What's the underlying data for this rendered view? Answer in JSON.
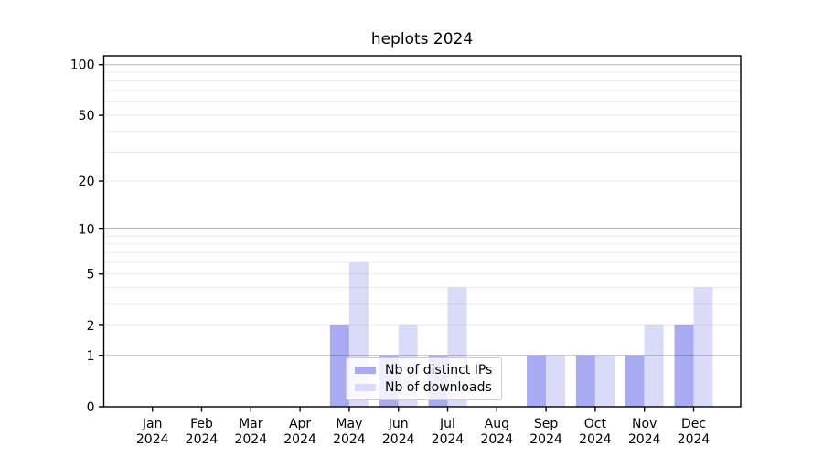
{
  "chart_data": {
    "type": "bar",
    "title": "heplots 2024",
    "categories": [
      "Jan",
      "Feb",
      "Mar",
      "Apr",
      "May",
      "Jun",
      "Jul",
      "Aug",
      "Sep",
      "Oct",
      "Nov",
      "Dec"
    ],
    "year_label": "2024",
    "series": [
      {
        "name": "Nb of distinct IPs",
        "color": "#a8abf2",
        "values": [
          0,
          0,
          0,
          0,
          2,
          1,
          1,
          0,
          1,
          1,
          1,
          2
        ]
      },
      {
        "name": "Nb of downloads",
        "color": "#d9dbf8",
        "values": [
          0,
          0,
          0,
          0,
          6,
          2,
          4,
          0,
          1,
          1,
          2,
          4
        ]
      }
    ],
    "xlabel": "",
    "ylabel": "",
    "y_scale": "log1p",
    "ylim": [
      0,
      113
    ],
    "y_ticks": [
      0,
      1,
      2,
      5,
      10,
      20,
      50,
      100
    ],
    "grid": {
      "on": true,
      "minor_values": [
        2,
        3,
        4,
        5,
        6,
        7,
        8,
        9,
        20,
        30,
        40,
        50,
        60,
        70,
        80,
        90
      ],
      "major_values": [
        1,
        10,
        100
      ],
      "minor_color": "rgba(0,0,0,0.08)",
      "major_color": "rgba(0,0,0,0.28)"
    },
    "legend_position": "lower center",
    "frame_color": "#000000"
  }
}
